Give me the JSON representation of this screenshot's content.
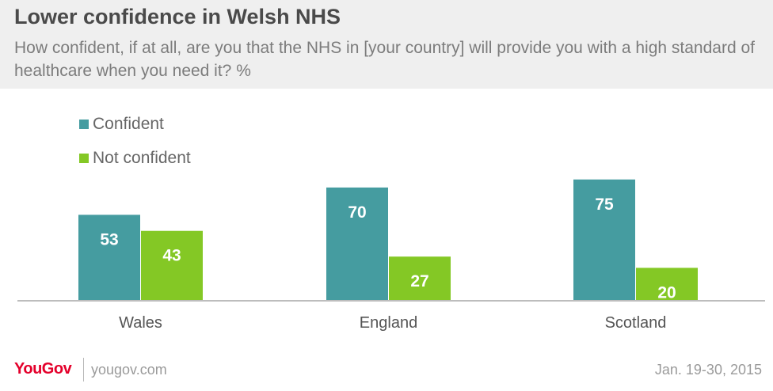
{
  "header": {
    "title": "Lower confidence in Welsh NHS",
    "subtitle": "How confident, if at all, are you that the NHS in [your country] will provide you with a high standard of healthcare when you need it? %"
  },
  "legend": [
    {
      "label": "Confident",
      "color": "#459ca0"
    },
    {
      "label": "Not confident",
      "color": "#84c825"
    }
  ],
  "chart_data": {
    "type": "bar",
    "categories": [
      "Wales",
      "England",
      "Scotland"
    ],
    "series": [
      {
        "name": "Confident",
        "values": [
          53,
          70,
          75
        ],
        "color": "#459ca0"
      },
      {
        "name": "Not confident",
        "values": [
          43,
          27,
          20
        ],
        "color": "#84c825"
      }
    ],
    "title": "Lower confidence in Welsh NHS",
    "subtitle": "How confident, if at all, are you that the NHS in [your country] will provide you with a high standard of healthcare when you need it? %",
    "legend_position": "top-left",
    "grid": false,
    "data_labels": true
  },
  "footer": {
    "logo": "YouGov",
    "site": "yougov.com",
    "date": "Jan. 19-30, 2015"
  }
}
